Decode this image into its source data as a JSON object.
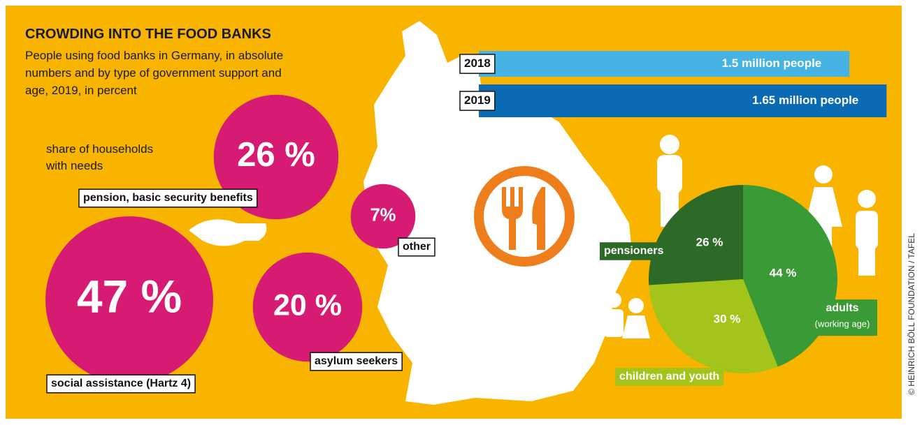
{
  "chart_data": [
    {
      "type": "bubble",
      "title": "CROWDING INTO THE FOOD BANKS",
      "subtitle": "People using food banks in Germany, in absolute numbers and by type of government support and age, 2019, in percent",
      "note": "share of households with needs",
      "categories": [
        "pension, basic security benefits",
        "social assistance (Hartz 4)",
        "asylum seekers",
        "other"
      ],
      "values": [
        26,
        47,
        20,
        7
      ],
      "value_labels": [
        "26 %",
        "47 %",
        "20 %",
        "7%"
      ],
      "color": "#d81b72"
    },
    {
      "type": "bar",
      "categories": [
        "2018",
        "2019"
      ],
      "values": [
        1.5,
        1.65
      ],
      "value_labels": [
        "1.5 million people",
        "1.65 million people"
      ],
      "colors": [
        "#45b3e4",
        "#0a6ab3"
      ]
    },
    {
      "type": "pie",
      "categories": [
        "adults",
        "children and youth",
        "pensioners"
      ],
      "values": [
        44,
        30,
        26
      ],
      "value_labels": [
        "44 %",
        "30 %",
        "26 %"
      ],
      "annotation": "(working age)",
      "colors": [
        "#3a9a35",
        "#a3c41a",
        "#2d6a27"
      ]
    }
  ],
  "credit": "© HEINRICH BÖLL FOUNDATION / TAFEL"
}
